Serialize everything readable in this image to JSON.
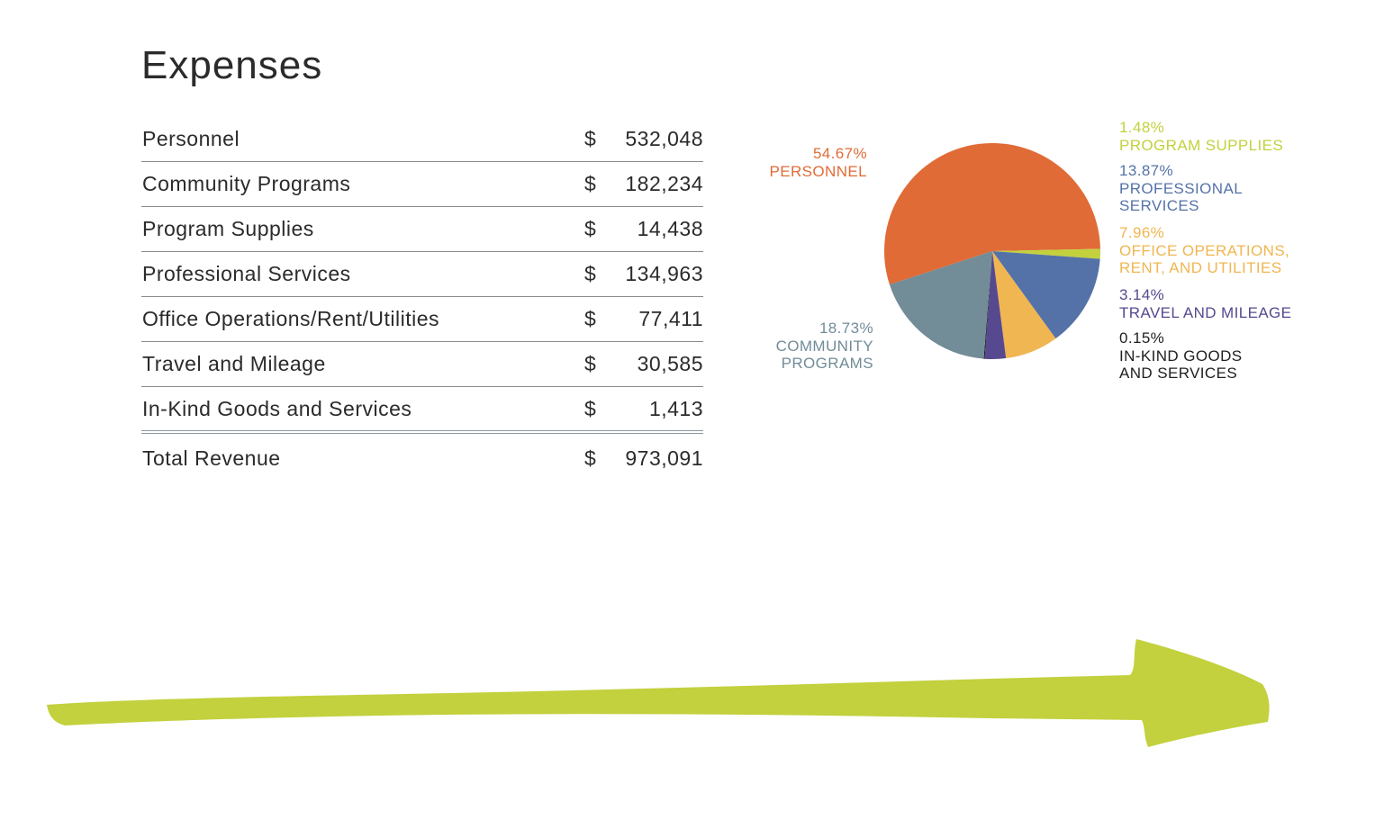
{
  "title": "Expenses",
  "table": {
    "rows": [
      {
        "label": "Personnel",
        "currency": "$",
        "value": "532,048"
      },
      {
        "label": "Community Programs",
        "currency": "$",
        "value": "182,234"
      },
      {
        "label": "Program Supplies",
        "currency": "$",
        "value": "14,438"
      },
      {
        "label": "Professional Services",
        "currency": "$",
        "value": "134,963"
      },
      {
        "label": "Office Operations/Rent/Utilities",
        "currency": "$",
        "value": "77,411"
      },
      {
        "label": "Travel and Mileage",
        "currency": "$",
        "value": "30,585"
      },
      {
        "label": "In-Kind Goods and Services",
        "currency": "$",
        "value": "1,413"
      }
    ],
    "total": {
      "label": "Total Revenue",
      "currency": "$",
      "value": "973,091"
    }
  },
  "chart_data": {
    "type": "pie",
    "slices": [
      {
        "key": "personnel",
        "pct_label": "54.67%",
        "name_lines": [
          "PERSONNEL"
        ],
        "value": 54.67,
        "color": "#e06b37"
      },
      {
        "key": "program-supplies",
        "pct_label": "1.48%",
        "name_lines": [
          "PROGRAM SUPPLIES"
        ],
        "value": 1.48,
        "color": "#c2d13d"
      },
      {
        "key": "professional-services",
        "pct_label": "13.87%",
        "name_lines": [
          "PROFESSIONAL",
          "SERVICES"
        ],
        "value": 13.87,
        "color": "#5572a8"
      },
      {
        "key": "office-operations",
        "pct_label": "7.96%",
        "name_lines": [
          "OFFICE OPERATIONS,",
          "RENT, AND UTILITIES"
        ],
        "value": 7.96,
        "color": "#f0b651"
      },
      {
        "key": "travel-and-mileage",
        "pct_label": "3.14%",
        "name_lines": [
          "TRAVEL AND MILEAGE"
        ],
        "value": 3.14,
        "color": "#56498f"
      },
      {
        "key": "in-kind",
        "pct_label": "0.15%",
        "name_lines": [
          "IN-KIND GOODS",
          "AND SERVICES"
        ],
        "value": 0.15,
        "color": "#1f1f1f"
      },
      {
        "key": "community-programs",
        "pct_label": "18.73%",
        "name_lines": [
          "COMMUNITY",
          "PROGRAMS"
        ],
        "value": 18.73,
        "color": "#728c98"
      }
    ]
  },
  "colors": {
    "arrow": "#c2d13d",
    "text": "#2b2b2b",
    "rule": "#8a8a8a"
  },
  "icons": {
    "arrow": "brush-arrow-right-icon"
  }
}
